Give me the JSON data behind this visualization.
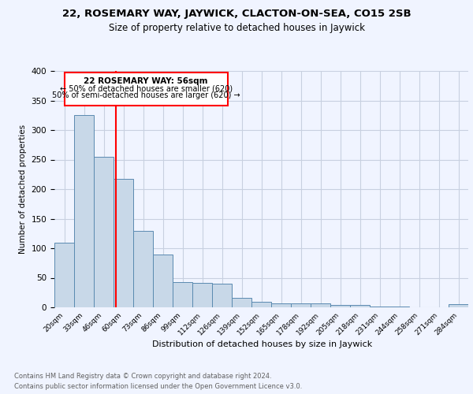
{
  "title1": "22, ROSEMARY WAY, JAYWICK, CLACTON-ON-SEA, CO15 2SB",
  "title2": "Size of property relative to detached houses in Jaywick",
  "xlabel": "Distribution of detached houses by size in Jaywick",
  "ylabel": "Number of detached properties",
  "categories": [
    "20sqm",
    "33sqm",
    "46sqm",
    "60sqm",
    "73sqm",
    "86sqm",
    "99sqm",
    "112sqm",
    "126sqm",
    "139sqm",
    "152sqm",
    "165sqm",
    "178sqm",
    "192sqm",
    "205sqm",
    "218sqm",
    "231sqm",
    "244sqm",
    "258sqm",
    "271sqm",
    "284sqm"
  ],
  "values": [
    110,
    325,
    255,
    218,
    130,
    90,
    43,
    42,
    40,
    16,
    9,
    7,
    7,
    7,
    4,
    4,
    1,
    1,
    0,
    0,
    5
  ],
  "bar_color": "#c8d8e8",
  "bar_edge_color": "#5a8ab0",
  "bar_width": 1.0,
  "red_line_x": 2.615,
  "annotation_title": "22 ROSEMARY WAY: 56sqm",
  "annotation_line1": "← 50% of detached houses are smaller (620)",
  "annotation_line2": "50% of semi-detached houses are larger (620) →",
  "footer1": "Contains HM Land Registry data © Crown copyright and database right 2024.",
  "footer2": "Contains public sector information licensed under the Open Government Licence v3.0.",
  "bg_color": "#f0f4ff",
  "grid_color": "#c8d0e0",
  "ylim": [
    0,
    400
  ],
  "yticks": [
    0,
    50,
    100,
    150,
    200,
    250,
    300,
    350,
    400
  ]
}
